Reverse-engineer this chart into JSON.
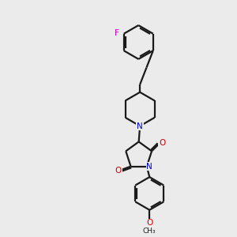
{
  "background_color": "#ebebeb",
  "bond_color": "#1a1a1a",
  "N_color": "#0000cc",
  "O_color": "#cc0000",
  "F_color": "#cc00cc",
  "line_width": 1.6,
  "figsize": [
    3.0,
    3.0
  ],
  "dpi": 100,
  "xlim": [
    0,
    10
  ],
  "ylim": [
    0,
    10
  ]
}
